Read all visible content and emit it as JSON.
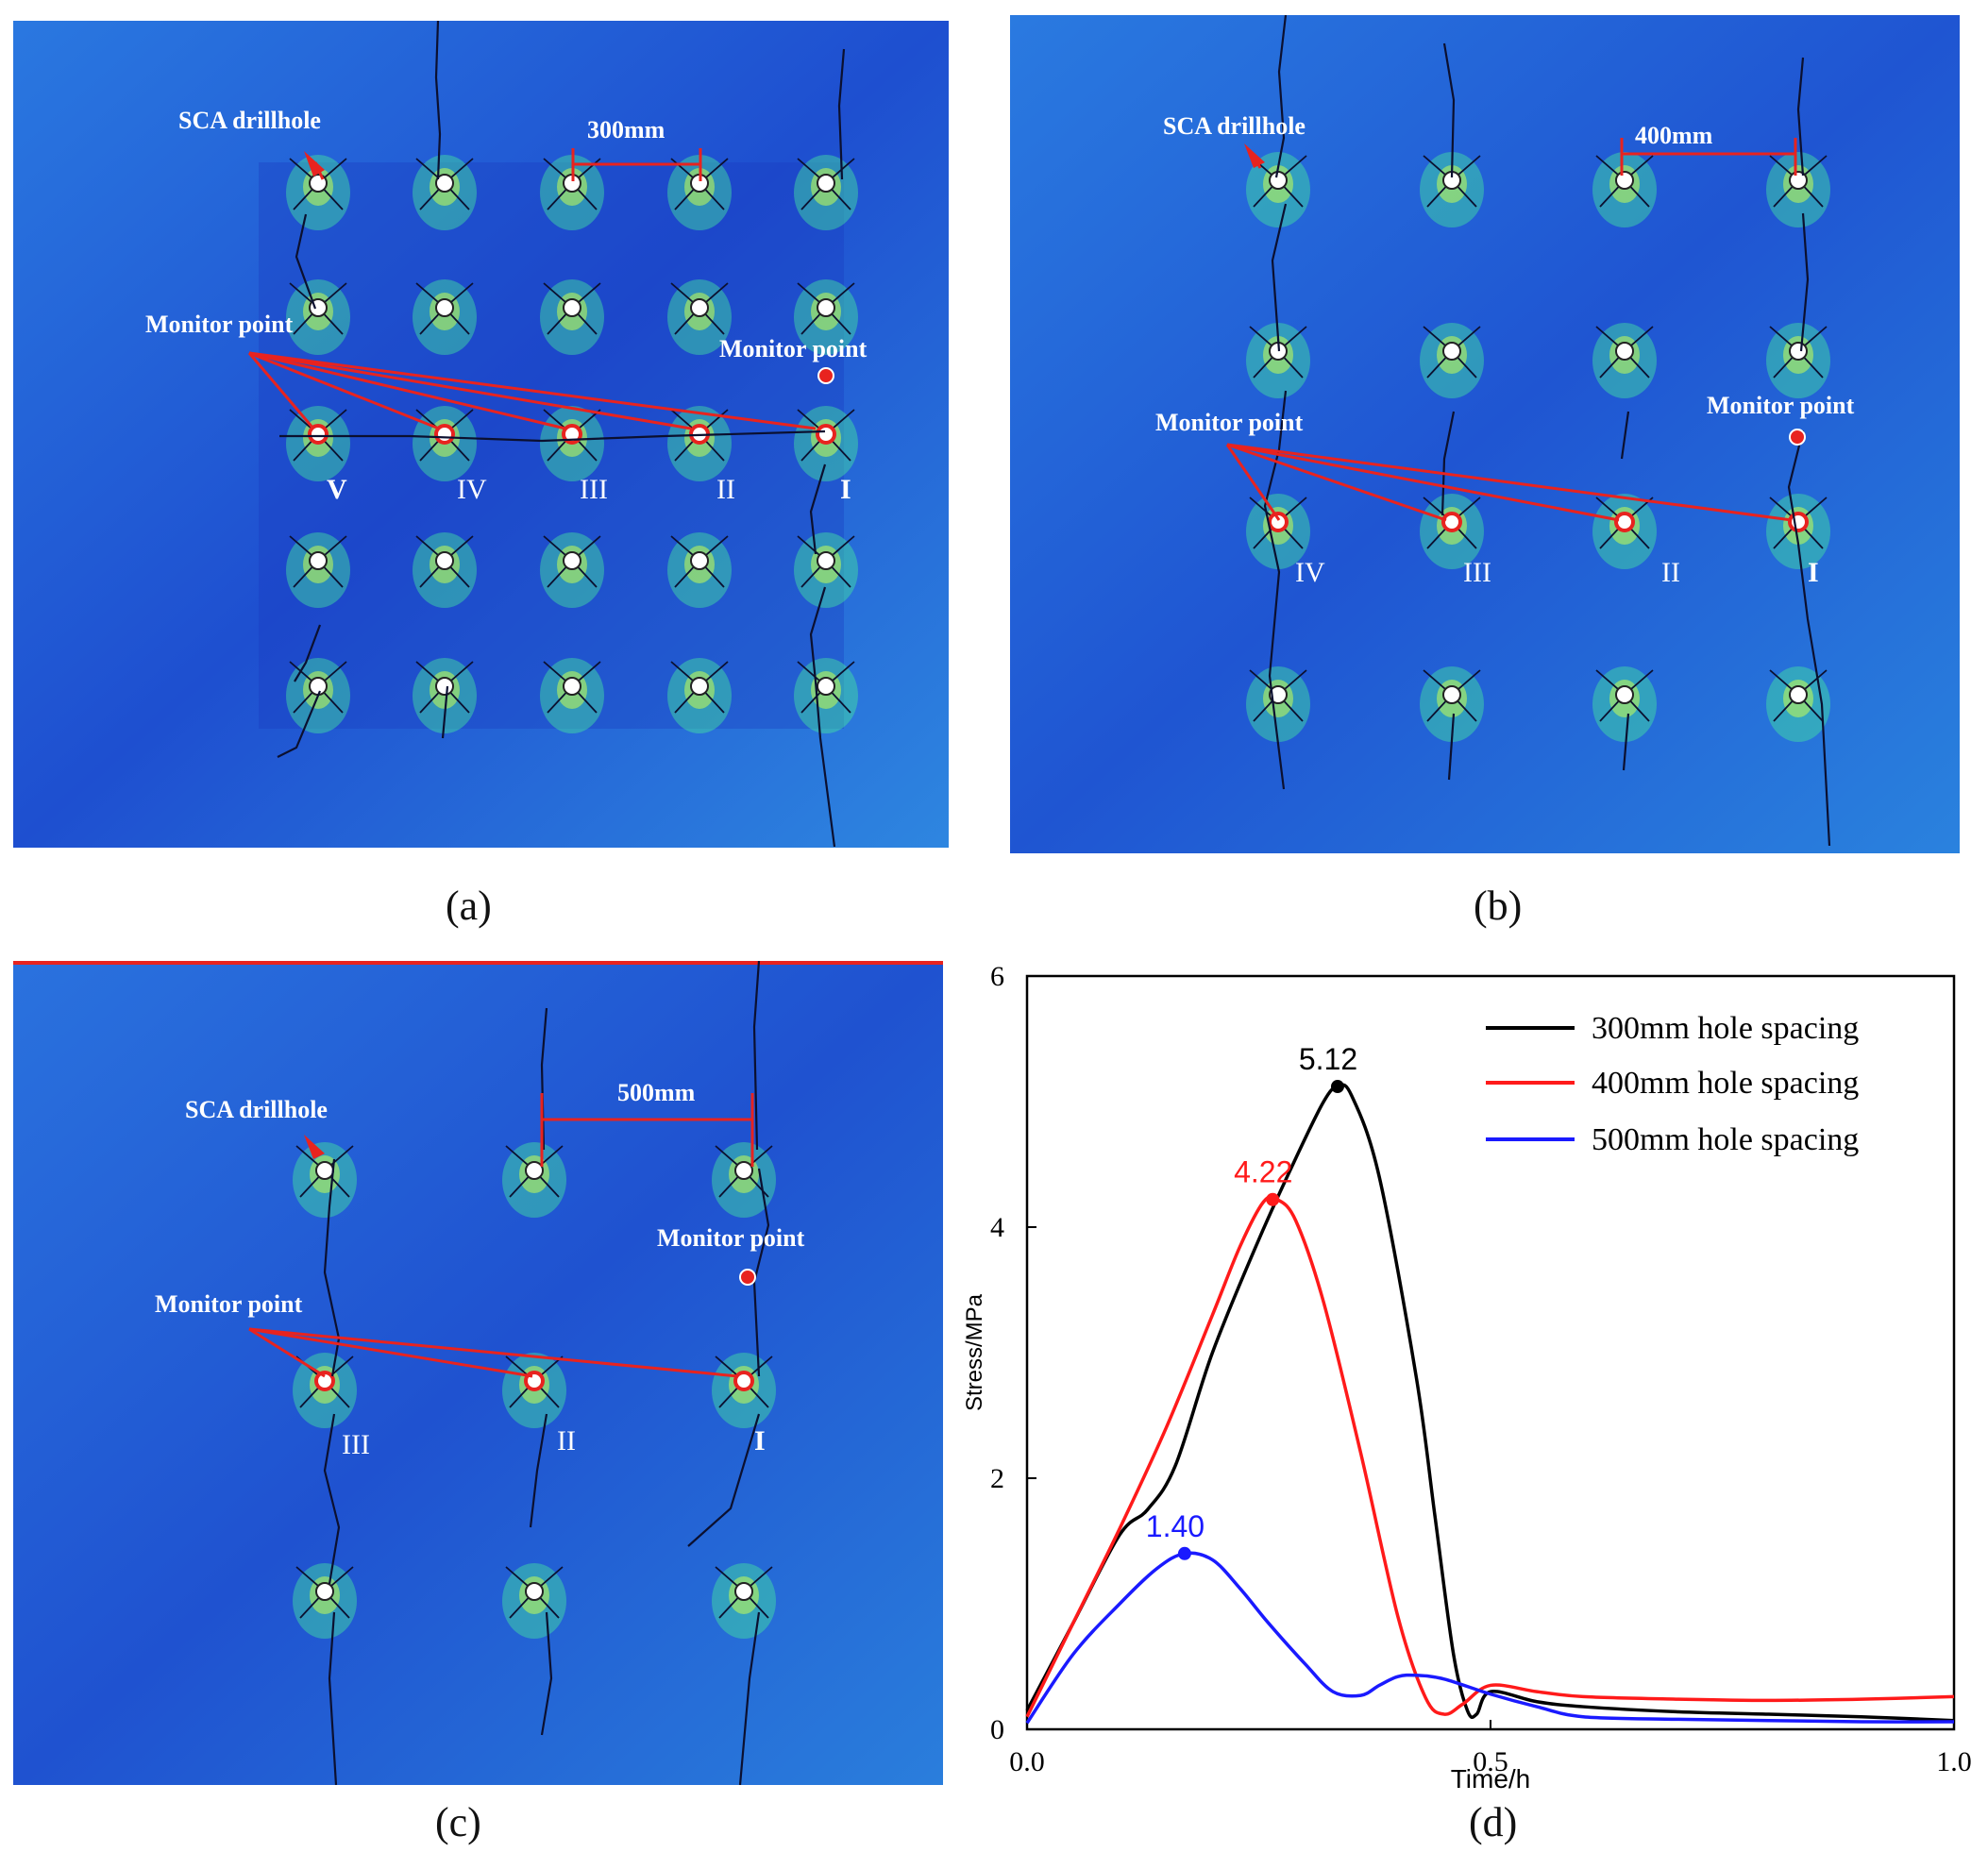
{
  "panels": {
    "a": {
      "caption": "(a)",
      "drillhole_label": "SCA drillhole",
      "spacing_label": "300mm",
      "monitor_label_left": "Monitor point",
      "monitor_label_right": "Monitor point",
      "roman": [
        "V",
        "IV",
        "III",
        "II",
        "I"
      ]
    },
    "b": {
      "caption": "(b)",
      "drillhole_label": "SCA drillhole",
      "spacing_label": "400mm",
      "monitor_label_left": "Monitor point",
      "monitor_label_right": "Monitor point",
      "roman": [
        "IV",
        "III",
        "II",
        "I"
      ]
    },
    "c": {
      "caption": "(c)",
      "drillhole_label": "SCA drillhole",
      "spacing_label": "500mm",
      "monitor_label_left": "Monitor point",
      "monitor_label_right": "Monitor point",
      "roman": [
        "III",
        "II",
        "I"
      ]
    },
    "d": {
      "caption": "(d)"
    }
  },
  "colors": {
    "field_blue": "#1e5fd8",
    "field_dark": "#1a3fc0",
    "annotation_red": "#e8231f",
    "series_300": "#000000",
    "series_400": "#ff1a1a",
    "series_500": "#1a1aff"
  },
  "chart_data": {
    "type": "line",
    "title": "",
    "xlabel": "Time/h",
    "ylabel": "Stress/MPa",
    "xlim": [
      0,
      1.0
    ],
    "ylim": [
      0,
      6
    ],
    "xticks": [
      0,
      0.5,
      1.0
    ],
    "xtick_labels": [
      "0.0",
      "0.5",
      "1.0"
    ],
    "yticks": [
      0,
      2,
      4,
      6
    ],
    "ytick_labels": [
      "0",
      "2",
      "4",
      "6"
    ],
    "legend_position": "top-right",
    "series": [
      {
        "name": "300mm hole spacing",
        "color": "#000000",
        "x": [
          0,
          0.05,
          0.1,
          0.13,
          0.16,
          0.2,
          0.25,
          0.29,
          0.32,
          0.335,
          0.35,
          0.38,
          0.42,
          0.44,
          0.46,
          0.475,
          0.485,
          0.5,
          0.55,
          0.6,
          0.7,
          0.8,
          0.9,
          1.0
        ],
        "y": [
          0.15,
          0.85,
          1.55,
          1.75,
          2.1,
          3.0,
          3.9,
          4.55,
          5.0,
          5.12,
          5.05,
          4.4,
          2.8,
          1.7,
          0.6,
          0.15,
          0.12,
          0.3,
          0.22,
          0.18,
          0.14,
          0.12,
          0.1,
          0.07
        ],
        "peak": {
          "x": 0.335,
          "y": 5.12,
          "label": "5.12"
        }
      },
      {
        "name": "400mm hole spacing",
        "color": "#ff1a1a",
        "x": [
          0,
          0.05,
          0.1,
          0.15,
          0.2,
          0.23,
          0.255,
          0.27,
          0.29,
          0.32,
          0.36,
          0.4,
          0.43,
          0.45,
          0.47,
          0.5,
          0.55,
          0.6,
          0.7,
          0.8,
          0.9,
          1.0
        ],
        "y": [
          0.1,
          0.85,
          1.6,
          2.4,
          3.3,
          3.85,
          4.2,
          4.22,
          4.05,
          3.4,
          2.2,
          0.9,
          0.25,
          0.12,
          0.2,
          0.35,
          0.3,
          0.26,
          0.24,
          0.23,
          0.24,
          0.26
        ],
        "peak": {
          "x": 0.265,
          "y": 4.22,
          "label": "4.22"
        }
      },
      {
        "name": "500mm hole spacing",
        "color": "#1a1aff",
        "x": [
          0,
          0.05,
          0.1,
          0.14,
          0.17,
          0.2,
          0.23,
          0.26,
          0.3,
          0.33,
          0.36,
          0.38,
          0.4,
          0.42,
          0.45,
          0.5,
          0.55,
          0.6,
          0.7,
          0.8,
          0.9,
          1.0
        ],
        "y": [
          0.05,
          0.6,
          1.0,
          1.28,
          1.4,
          1.35,
          1.12,
          0.85,
          0.52,
          0.3,
          0.27,
          0.35,
          0.42,
          0.43,
          0.4,
          0.28,
          0.18,
          0.1,
          0.08,
          0.07,
          0.06,
          0.06
        ],
        "peak": {
          "x": 0.17,
          "y": 1.4,
          "label": "1.40"
        }
      }
    ]
  }
}
